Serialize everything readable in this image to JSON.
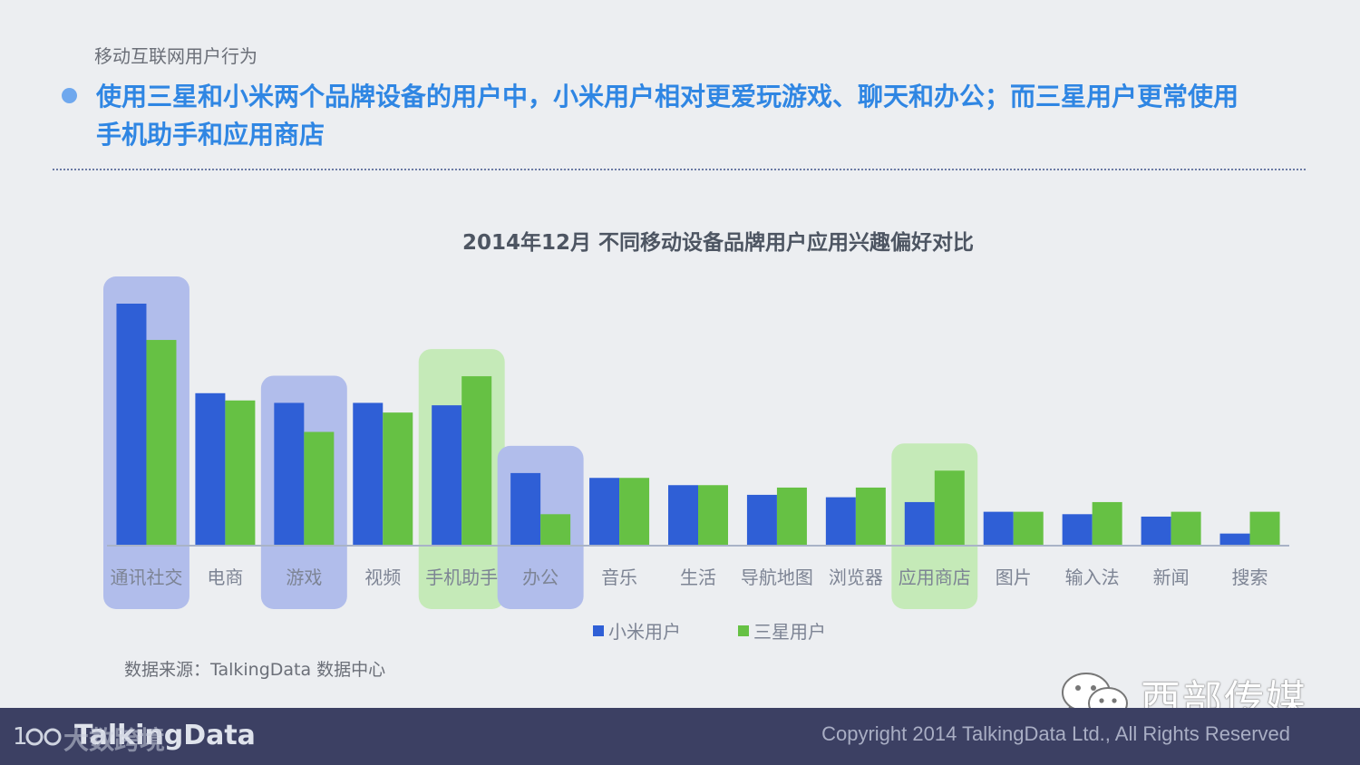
{
  "header": {
    "breadcrumb": "移动互联网用户行为",
    "headline": "使用三星和小米两个品牌设备的用户中，小米用户相对更爱玩游戏、聊天和办公；而三星用户更常使用\n手机助手和应用商店"
  },
  "chart_data": {
    "type": "bar",
    "title": "2014年12月 不同移动设备品牌用户应用兴趣偏好对比",
    "categories": [
      "通讯社交",
      "电商",
      "游戏",
      "视频",
      "手机助手",
      "办公",
      "音乐",
      "生活",
      "导航地图",
      "浏览器",
      "应用商店",
      "图片",
      "输入法",
      "新闻",
      "搜索"
    ],
    "series": [
      {
        "name": "小米用户",
        "color": "#2f5fd6",
        "values": [
          100,
          63,
          59,
          59,
          58,
          30,
          28,
          25,
          21,
          20,
          18,
          14,
          13,
          12,
          5
        ]
      },
      {
        "name": "三星用户",
        "color": "#66c144",
        "values": [
          85,
          60,
          47,
          55,
          70,
          13,
          28,
          25,
          24,
          24,
          31,
          14,
          18,
          14,
          14
        ]
      }
    ],
    "highlight_blue": [
      "通讯社交",
      "游戏",
      "办公"
    ],
    "highlight_green": [
      "手机助手",
      "应用商店"
    ],
    "highlight_colors": {
      "blue": "#b1bdeb",
      "green": "#c5eab8"
    },
    "ylim": [
      0,
      100
    ],
    "axis_color": "#a9b3c7",
    "legend": "bottom",
    "grid": false
  },
  "source": "数据来源：TalkingData 数据中心",
  "wechat": {
    "icon": "wechat-icon",
    "text": "西部传媒"
  },
  "footer": {
    "logo_text": "TalkingData",
    "watermark": "大数跨境",
    "copyright": "Copyright 2014 TalkingData Ltd., All Rights Reserved"
  }
}
